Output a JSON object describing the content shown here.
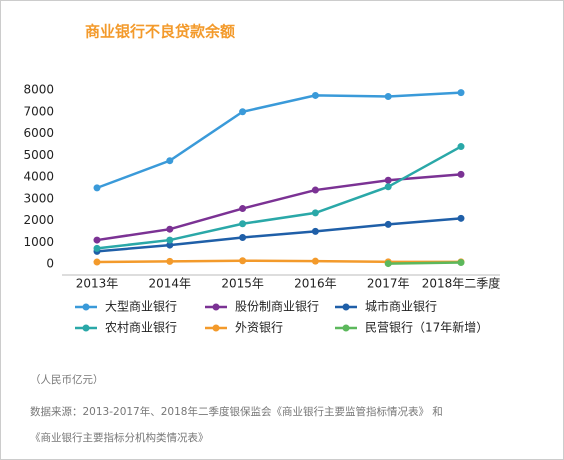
{
  "chart_data": {
    "type": "line",
    "title": "商业银行不良贷款余额",
    "categories": [
      "2013年",
      "2014年",
      "2015年",
      "2016年",
      "2017年",
      "2018年二季度"
    ],
    "series": [
      {
        "name": "大型商业银行",
        "color": "#3a9ad9",
        "values": [
          3500,
          4750,
          7000,
          7750,
          7700,
          7880
        ]
      },
      {
        "name": "股份制商业银行",
        "color": "#7b3294",
        "values": [
          1100,
          1600,
          2550,
          3400,
          3850,
          4120
        ]
      },
      {
        "name": "城市商业银行",
        "color": "#1f5fa8",
        "values": [
          580,
          870,
          1220,
          1500,
          1820,
          2100
        ]
      },
      {
        "name": "农村商业银行",
        "color": "#2aa8a8",
        "values": [
          720,
          1100,
          1850,
          2350,
          3550,
          5400
        ]
      },
      {
        "name": "外资银行",
        "color": "#f39a2b",
        "values": [
          90,
          120,
          150,
          130,
          100,
          100
        ]
      },
      {
        "name": "民营银行（17年新增）",
        "color": "#5cb85c",
        "values": [
          null,
          null,
          null,
          null,
          20,
          70
        ]
      }
    ],
    "ylim": [
      0,
      8000
    ],
    "yticks": [
      0,
      1000,
      2000,
      3000,
      4000,
      5000,
      6000,
      7000,
      8000
    ],
    "unit_note": "（人民币亿元）",
    "source_lines": [
      "数据来源：2013-2017年、2018年二季度银保监会《商业银行主要监管指标情况表》 和",
      "《商业银行主要指标分机构类情况表》"
    ]
  }
}
